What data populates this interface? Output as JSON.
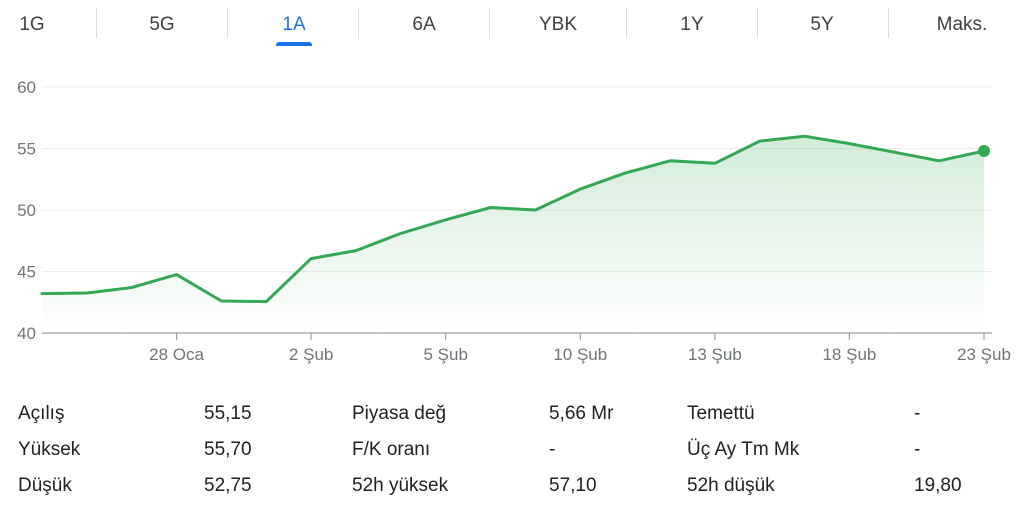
{
  "tabs": [
    {
      "label": "1G",
      "active": false
    },
    {
      "label": "5G",
      "active": false
    },
    {
      "label": "1A",
      "active": true
    },
    {
      "label": "6A",
      "active": false
    },
    {
      "label": "YBK",
      "active": false
    },
    {
      "label": "1Y",
      "active": false
    },
    {
      "label": "5Y",
      "active": false
    },
    {
      "label": "Maks.",
      "active": false
    }
  ],
  "chart_data": {
    "type": "area",
    "x_tick_labels": [
      "28 Oca",
      "2 Şub",
      "5 Şub",
      "10 Şub",
      "13 Şub",
      "18 Şub",
      "23 Şub"
    ],
    "x_tick_index": [
      3,
      6,
      9,
      12,
      15,
      18,
      21
    ],
    "y_ticks": [
      40,
      45,
      50,
      55,
      60
    ],
    "ylim": [
      40,
      60
    ],
    "values": [
      43.2,
      43.25,
      43.7,
      44.75,
      42.6,
      42.55,
      46.05,
      46.7,
      48.1,
      49.2,
      50.2,
      50.0,
      51.7,
      53.0,
      54.0,
      53.8,
      55.6,
      56.0,
      55.4,
      54.7,
      54.0,
      54.8
    ],
    "grid": true,
    "line_color": "#34a853",
    "fill_color": "#34a853"
  },
  "stats": [
    [
      {
        "label": "Açılış",
        "value": "55,15"
      },
      {
        "label": "Piyasa değ",
        "value": "5,66 Mr"
      },
      {
        "label": "Temettü",
        "value": "-"
      }
    ],
    [
      {
        "label": "Yüksek",
        "value": "55,70"
      },
      {
        "label": "F/K oranı",
        "value": "-"
      },
      {
        "label": "Üç Ay Tm Mk",
        "value": "-"
      }
    ],
    [
      {
        "label": "Düşük",
        "value": "52,75"
      },
      {
        "label": "52h yüksek",
        "value": "57,10"
      },
      {
        "label": "52h düşük",
        "value": "19,80"
      }
    ]
  ]
}
